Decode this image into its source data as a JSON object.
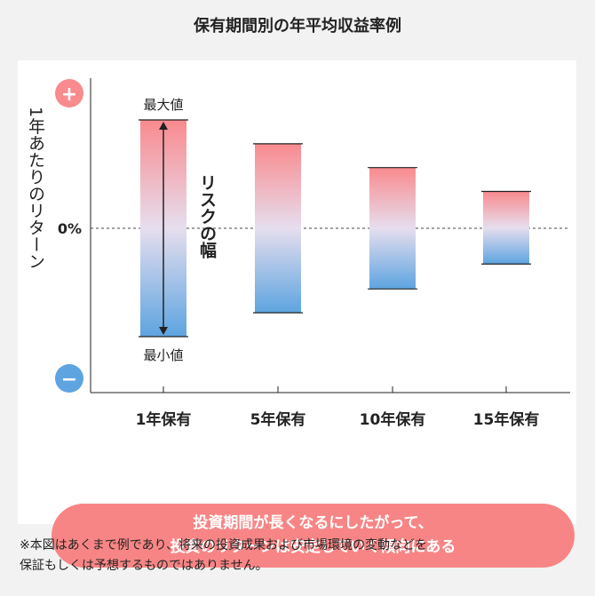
{
  "title": "保有期間別の年平均収益率例",
  "chart_data": {
    "type": "floating-bar",
    "categories": [
      "1年保有",
      "5年保有",
      "10年保有",
      "15年保有"
    ],
    "ranges": [
      {
        "category": "1年保有",
        "max": 100,
        "min": -100
      },
      {
        "category": "5年保有",
        "max": 78,
        "min": -78
      },
      {
        "category": "10年保有",
        "max": 56,
        "min": -56
      },
      {
        "category": "15年保有",
        "max": 34,
        "min": -33
      }
    ],
    "ylabel": "1年あたりのリターン",
    "zero_label": "0%",
    "plus_label": "+",
    "minus_label": "−",
    "max_label": "最大値",
    "min_label": "最小値",
    "risk_label": "リスクの幅",
    "colors": {
      "top": "#f98a8e",
      "middle": "#e6deee",
      "bottom": "#5da4e0",
      "plus": "#f98a8e",
      "minus": "#5da4e0"
    }
  },
  "caption": "投資期間が長くなるにしたがって、\n投資のリターンは安定していく傾向にある",
  "note": "※本図はあくまで例であり、将来の投資成果および市場環境の変動などを\n保証もしくは予想するものではありません。"
}
